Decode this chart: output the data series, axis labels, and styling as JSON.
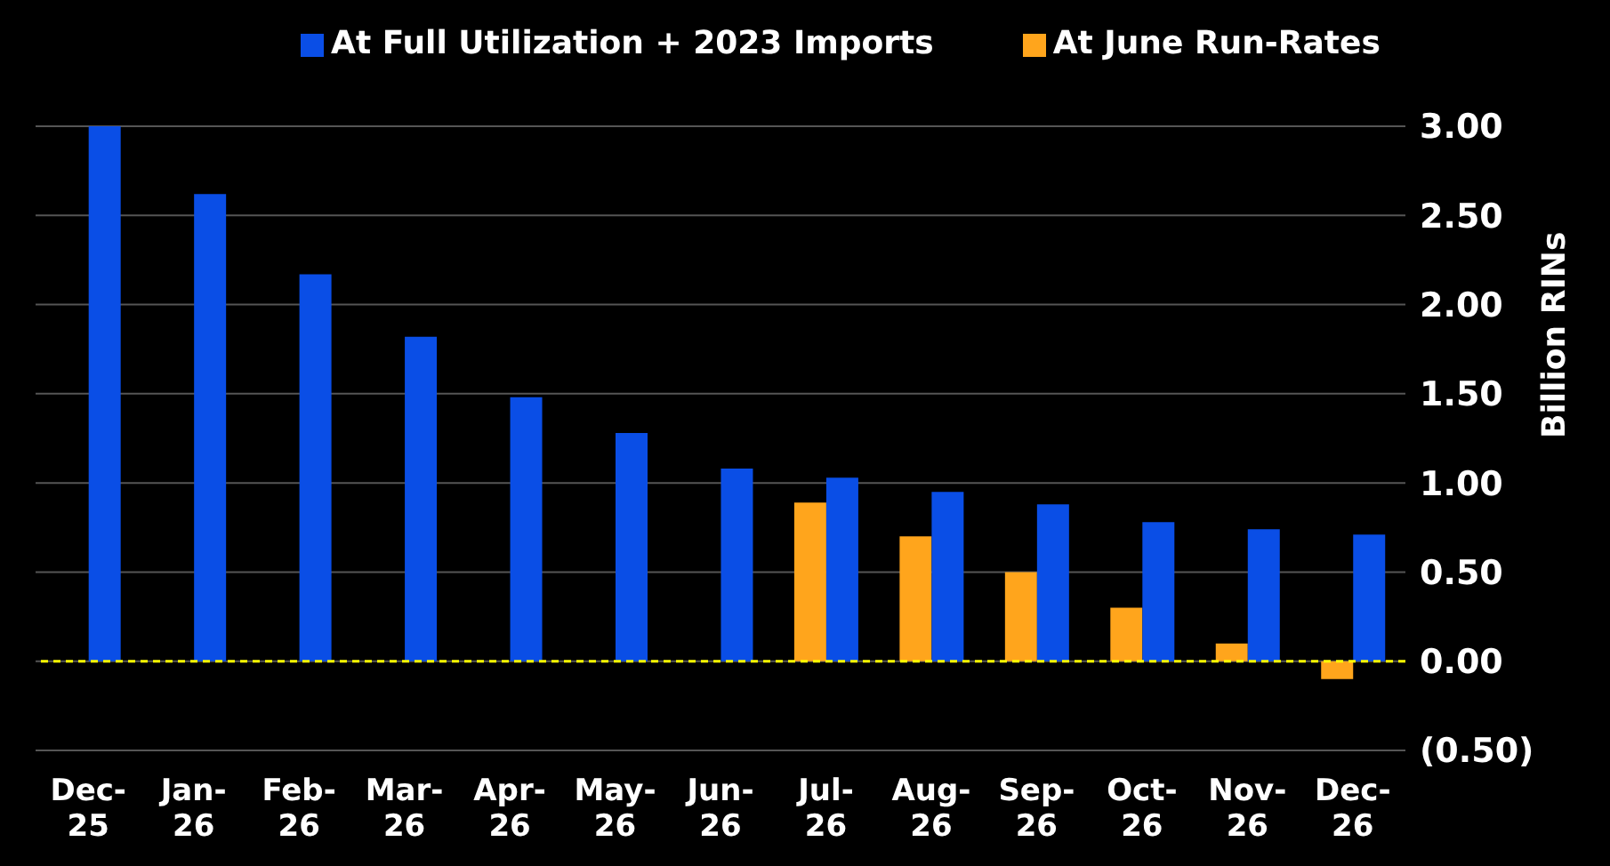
{
  "chart_data": {
    "type": "bar",
    "ylabel": "Billion RINs",
    "categories": [
      "Dec-25",
      "Jan-26",
      "Feb-26",
      "Mar-26",
      "Apr-26",
      "May-26",
      "Jun-26",
      "Jul-26",
      "Aug-26",
      "Sep-26",
      "Oct-26",
      "Nov-26",
      "Dec-26"
    ],
    "series": [
      {
        "name": "At June Run-Rates",
        "color": "#ffa51c",
        "values": [
          null,
          null,
          null,
          null,
          null,
          null,
          null,
          0.89,
          0.7,
          0.5,
          0.3,
          0.1,
          -0.1
        ]
      },
      {
        "name": "At Full Utilization + 2023 Imports",
        "color": "#0a4ee6",
        "values": [
          3.0,
          2.62,
          2.17,
          1.82,
          1.48,
          1.28,
          1.08,
          1.03,
          0.95,
          0.88,
          0.78,
          0.74,
          0.71
        ]
      }
    ],
    "ylim": [
      -0.5,
      3.0
    ],
    "yticks": [
      {
        "value": -0.5,
        "label": "(0.50)"
      },
      {
        "value": 0,
        "label": "0.00"
      },
      {
        "value": 0.5,
        "label": "0.50"
      },
      {
        "value": 1,
        "label": "1.00"
      },
      {
        "value": 1.5,
        "label": "1.50"
      },
      {
        "value": 2,
        "label": "2.00"
      },
      {
        "value": 2.5,
        "label": "2.50"
      },
      {
        "value": 3,
        "label": "3.00"
      }
    ],
    "ref_lines": [
      {
        "axis": "y",
        "value": 0,
        "color": "#ffff00",
        "line_style": "dashed"
      }
    ],
    "grid": "y",
    "legend": "top"
  }
}
